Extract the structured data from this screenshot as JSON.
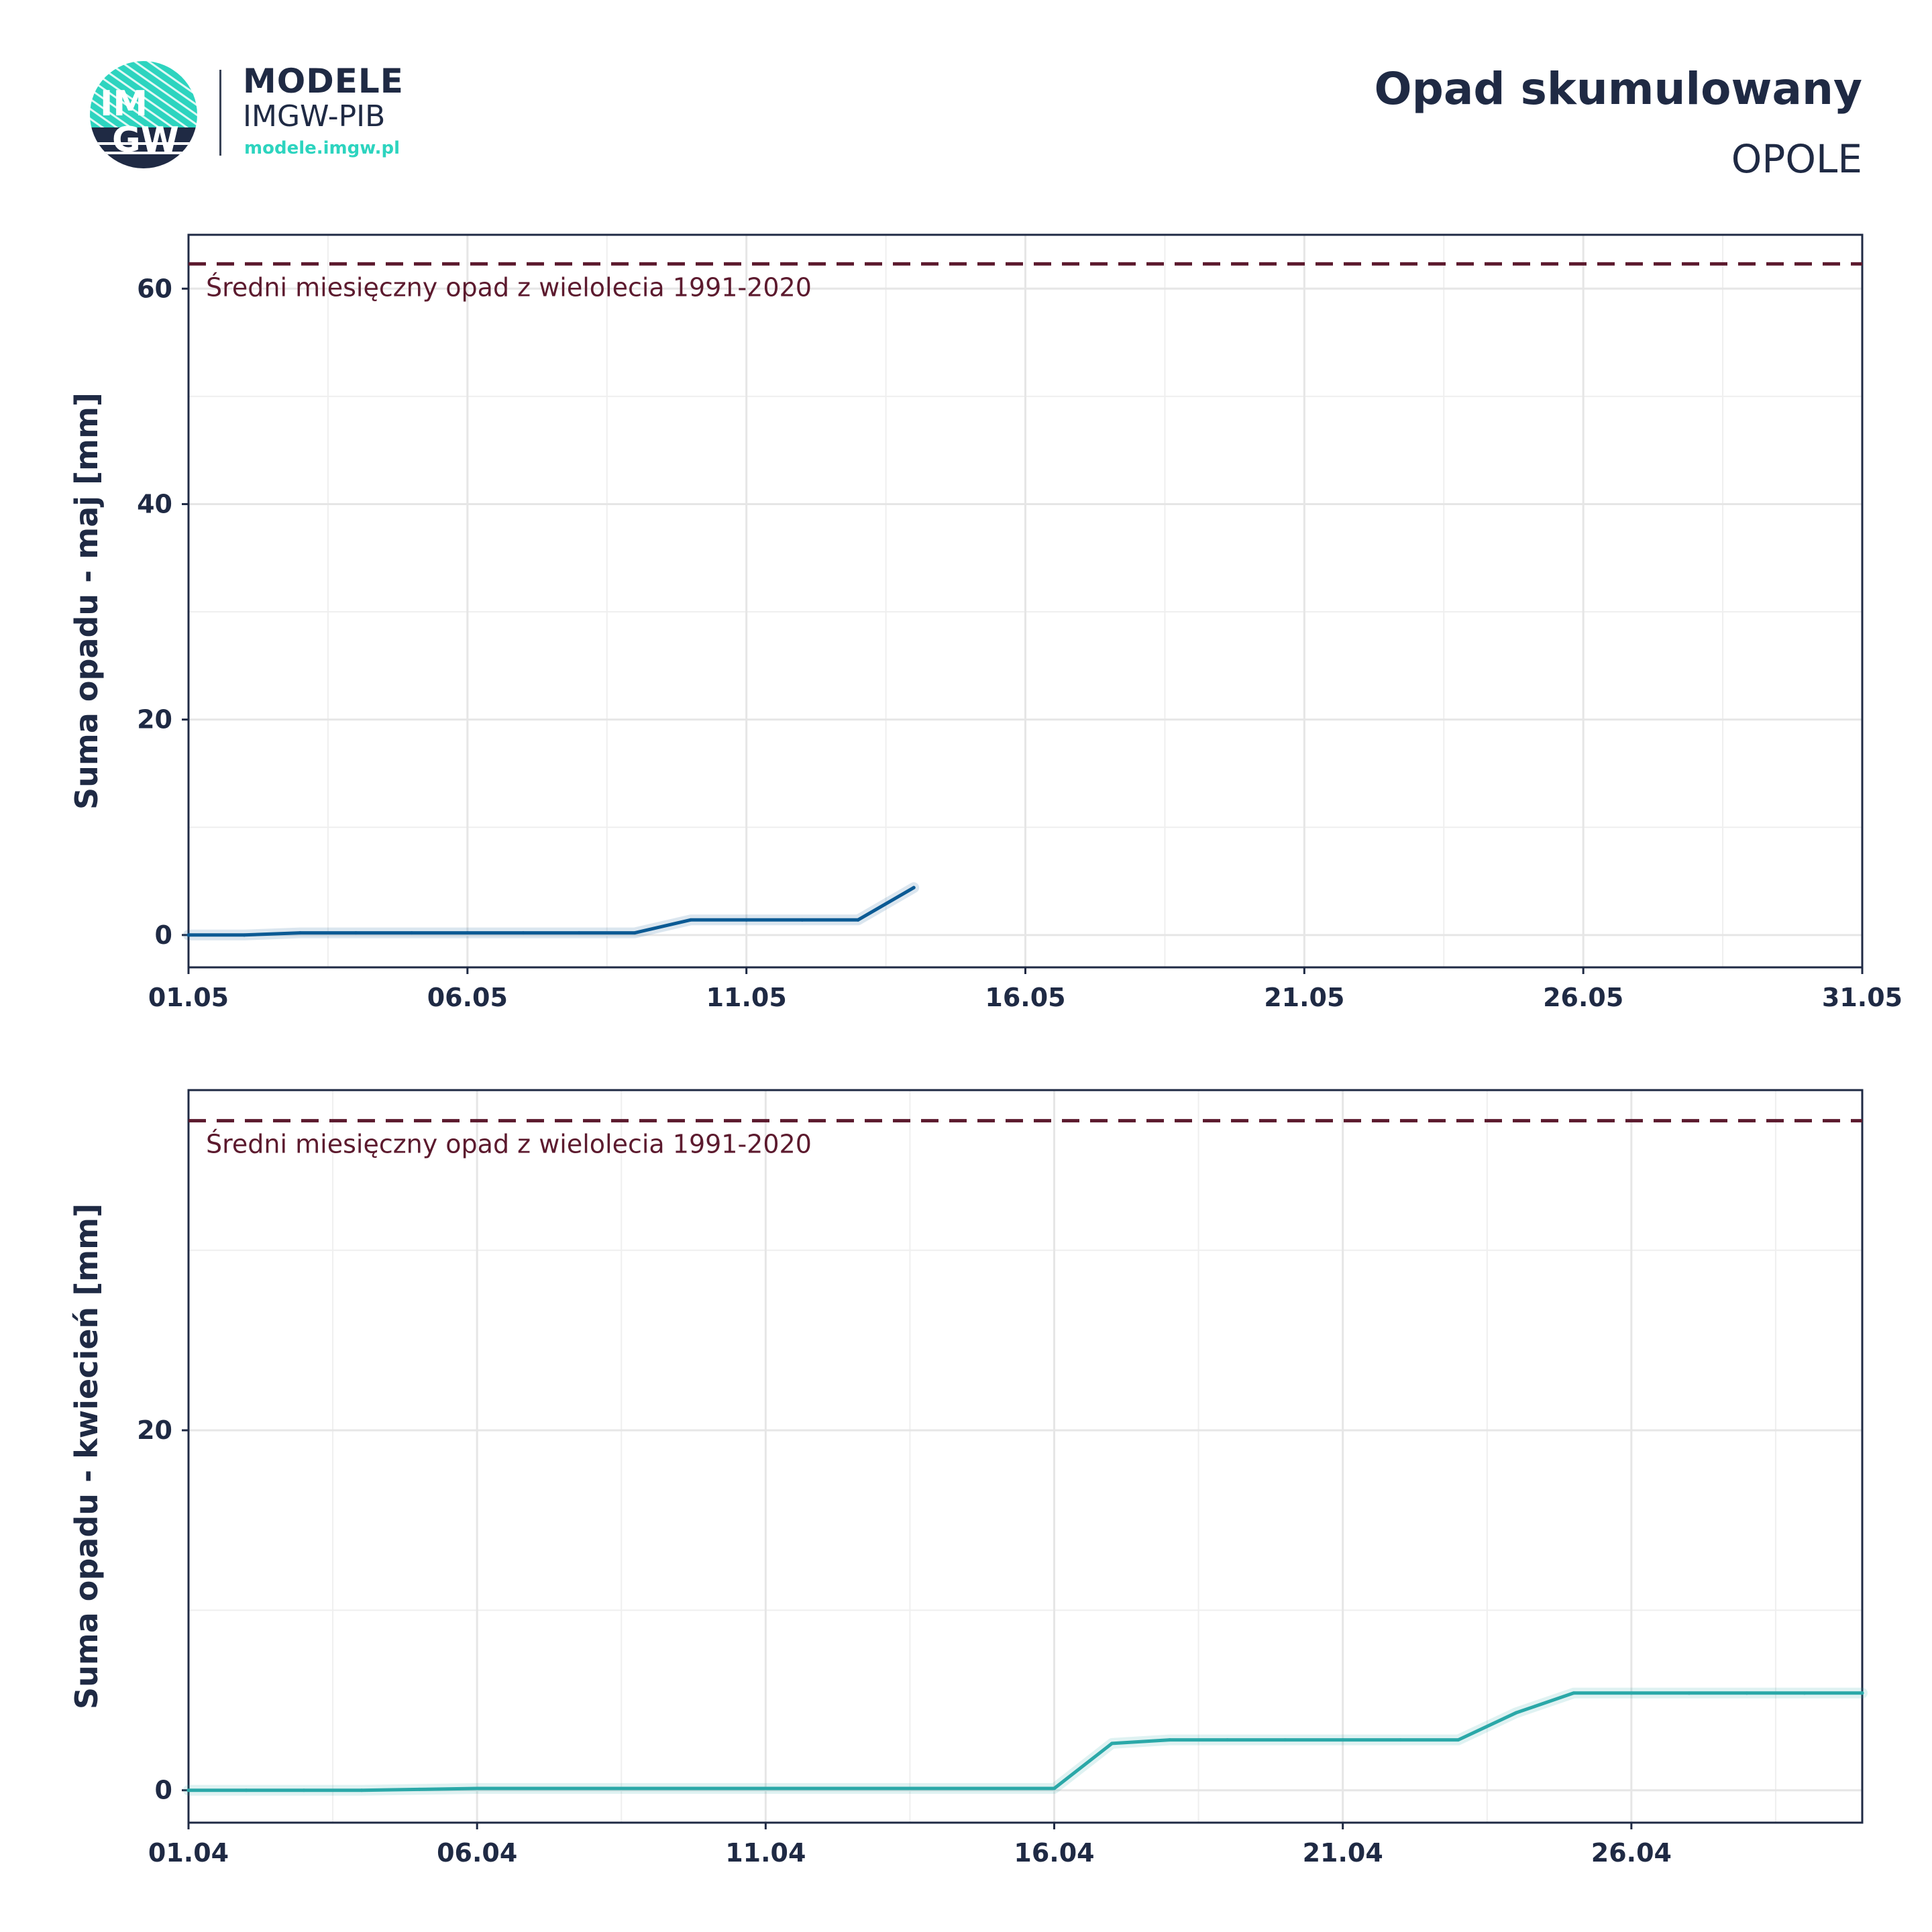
{
  "header": {
    "logo_text_top": "IM",
    "logo_text_bottom": "GW",
    "brand_main": "MODELE",
    "brand_sub": "IMGW-PIB",
    "brand_url": "modele.imgw.pl",
    "title": "Opad skumulowany",
    "station": "OPOLE"
  },
  "colors": {
    "text": "#1f2a44",
    "teal": "#2dd4bf",
    "reference": "#5c1a2e",
    "series_may": "#0b5a94",
    "series_april": "#2aa8a8",
    "grid": "#e6e6e6"
  },
  "chart_data": [
    {
      "type": "line",
      "xlabel": "",
      "ylabel": "Suma opadu - maj  [mm]",
      "x_unit": "day of May",
      "xlim": [
        1,
        31
      ],
      "ylim": [
        -3,
        65
      ],
      "xticks": [
        {
          "v": 1,
          "label": "01.05"
        },
        {
          "v": 6,
          "label": "06.05"
        },
        {
          "v": 11,
          "label": "11.05"
        },
        {
          "v": 16,
          "label": "16.05"
        },
        {
          "v": 21,
          "label": "21.05"
        },
        {
          "v": 26,
          "label": "26.05"
        },
        {
          "v": 31,
          "label": "31.05"
        }
      ],
      "yticks": [
        {
          "v": 0,
          "label": "0"
        },
        {
          "v": 20,
          "label": "20"
        },
        {
          "v": 40,
          "label": "40"
        },
        {
          "v": 60,
          "label": "60"
        }
      ],
      "reference": {
        "value": 62.3,
        "label": "Średni miesięczny opad z wielolecia 1991-2020"
      },
      "series": [
        {
          "color": "#0b5a94",
          "x": [
            1,
            2,
            3,
            4,
            5,
            6,
            7,
            8,
            9,
            10,
            11,
            12,
            13,
            14
          ],
          "y": [
            0.0,
            0.0,
            0.2,
            0.2,
            0.2,
            0.2,
            0.2,
            0.2,
            0.2,
            1.4,
            1.4,
            1.4,
            1.4,
            4.4
          ]
        }
      ],
      "grid": true
    },
    {
      "type": "line",
      "xlabel": "",
      "ylabel": "Suma opadu - kwiecień  [mm]",
      "x_unit": "day of April",
      "xlim": [
        1,
        30
      ],
      "ylim": [
        -1.8,
        38.9
      ],
      "xticks": [
        {
          "v": 1,
          "label": "01.04"
        },
        {
          "v": 6,
          "label": "06.04"
        },
        {
          "v": 11,
          "label": "11.04"
        },
        {
          "v": 16,
          "label": "16.04"
        },
        {
          "v": 21,
          "label": "21.04"
        },
        {
          "v": 26,
          "label": "26.04"
        }
      ],
      "yticks": [
        {
          "v": 0,
          "label": "0"
        },
        {
          "v": 20,
          "label": "20"
        }
      ],
      "reference": {
        "value": 37.2,
        "label": "Średni miesięczny opad z wielolecia 1991-2020"
      },
      "series": [
        {
          "color": "#2aa8a8",
          "x": [
            1,
            2,
            3,
            4,
            5,
            6,
            7,
            8,
            9,
            10,
            11,
            12,
            13,
            14,
            15,
            16,
            17,
            18,
            19,
            20,
            21,
            22,
            23,
            24,
            25,
            26,
            27,
            28,
            29,
            30
          ],
          "y": [
            0.0,
            0.0,
            0.0,
            0.0,
            0.05,
            0.1,
            0.1,
            0.1,
            0.1,
            0.1,
            0.1,
            0.1,
            0.1,
            0.1,
            0.1,
            0.1,
            2.6,
            2.8,
            2.8,
            2.8,
            2.8,
            2.8,
            2.8,
            4.3,
            5.4,
            5.4,
            5.4,
            5.4,
            5.4,
            5.4
          ]
        }
      ],
      "grid": true
    }
  ]
}
